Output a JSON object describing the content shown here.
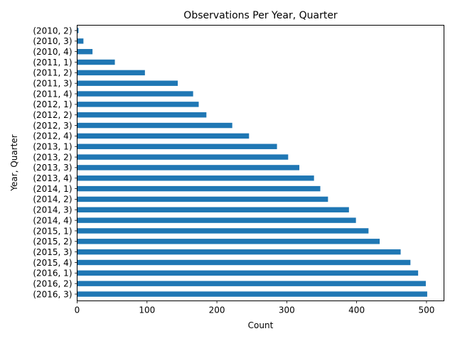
{
  "chart_data": {
    "type": "bar",
    "orientation": "horizontal",
    "title": "Observations Per Year, Quarter",
    "xlabel": "Count",
    "ylabel": "Year, Quarter",
    "xlim": [
      0,
      525
    ],
    "xticks": [
      0,
      100,
      200,
      300,
      400,
      500
    ],
    "xtick_labels": [
      "0",
      "100",
      "200",
      "300",
      "400",
      "500"
    ],
    "grid": false,
    "legend": "none",
    "bar_color": "#1f77b4",
    "categories": [
      "(2010, 2)",
      "(2010, 3)",
      "(2010, 4)",
      "(2011, 1)",
      "(2011, 2)",
      "(2011, 3)",
      "(2011, 4)",
      "(2012, 1)",
      "(2012, 2)",
      "(2012, 3)",
      "(2012, 4)",
      "(2013, 1)",
      "(2013, 2)",
      "(2013, 3)",
      "(2013, 4)",
      "(2014, 1)",
      "(2014, 2)",
      "(2014, 3)",
      "(2014, 4)",
      "(2015, 1)",
      "(2015, 2)",
      "(2015, 3)",
      "(2015, 4)",
      "(2016, 1)",
      "(2016, 2)",
      "(2016, 3)"
    ],
    "values": [
      2,
      9,
      22,
      54,
      97,
      144,
      166,
      174,
      185,
      222,
      246,
      286,
      302,
      318,
      339,
      348,
      359,
      389,
      399,
      417,
      433,
      463,
      477,
      488,
      499,
      501
    ]
  }
}
